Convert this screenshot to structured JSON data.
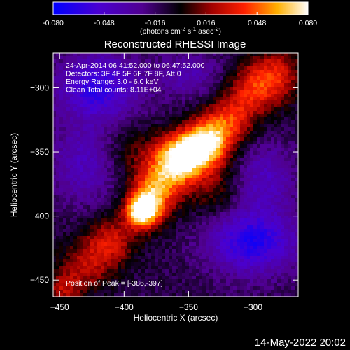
{
  "chart_data": {
    "type": "heatmap",
    "title": "Reconstructed RHESSI Image",
    "xlabel": "Heliocentric X (arcsec)",
    "ylabel": "Heliocentric Y (arcsec)",
    "xlim": [
      -455,
      -265
    ],
    "ylim": [
      -463,
      -273
    ],
    "xticks": [
      -450,
      -400,
      -350,
      -300
    ],
    "yticks": [
      -450,
      -400,
      -350,
      -300
    ],
    "colorbar": {
      "ticks": [
        "-0.080",
        "-0.048",
        "-0.016",
        "0.016",
        "0.048",
        "0.080"
      ],
      "range": [
        -0.08,
        0.08
      ],
      "unit_parts": [
        "(photons cm",
        "-2",
        " s",
        "-1",
        " asec",
        "-2",
        ")"
      ]
    },
    "annotations": [
      "24-Apr-2014 06:41:52.000 to 06:47:52.000",
      "Detectors: 3F 4F 5F 6F 7F 8F, Att 0",
      "Energy Range: 3.0 - 6.0 keV",
      "Clean     Total counts: 8.11E+04"
    ],
    "peak_label": "Position of Peak = [-386,-397]",
    "peak": [
      -386,
      -397
    ],
    "blobs": [
      {
        "x": -386,
        "y": -397,
        "amp": 0.082,
        "sx": 9,
        "sy": 9
      },
      {
        "x": -378,
        "y": -385,
        "amp": 0.06,
        "sx": 12,
        "sy": 14
      },
      {
        "x": -352,
        "y": -352,
        "amp": 0.074,
        "sx": 15,
        "sy": 12
      },
      {
        "x": -335,
        "y": -342,
        "amp": 0.068,
        "sx": 13,
        "sy": 12
      },
      {
        "x": -362,
        "y": -365,
        "amp": 0.05,
        "sx": 14,
        "sy": 14
      },
      {
        "x": -318,
        "y": -325,
        "amp": 0.045,
        "sx": 14,
        "sy": 13
      },
      {
        "x": -300,
        "y": -300,
        "amp": 0.045,
        "sx": 13,
        "sy": 14
      },
      {
        "x": -280,
        "y": -290,
        "amp": 0.04,
        "sx": 12,
        "sy": 15
      },
      {
        "x": -410,
        "y": -420,
        "amp": 0.04,
        "sx": 14,
        "sy": 14
      },
      {
        "x": -430,
        "y": -440,
        "amp": 0.032,
        "sx": 14,
        "sy": 14
      },
      {
        "x": -448,
        "y": -458,
        "amp": 0.03,
        "sx": 10,
        "sy": 10
      },
      {
        "x": -395,
        "y": -350,
        "amp": 0.018,
        "sx": 15,
        "sy": 15
      },
      {
        "x": -330,
        "y": -380,
        "amp": 0.022,
        "sx": 14,
        "sy": 16
      },
      {
        "x": -420,
        "y": -300,
        "amp": -0.05,
        "sx": 22,
        "sy": 18
      },
      {
        "x": -300,
        "y": -420,
        "amp": -0.055,
        "sx": 24,
        "sy": 18
      },
      {
        "x": -430,
        "y": -360,
        "amp": -0.03,
        "sx": 18,
        "sy": 22
      },
      {
        "x": -350,
        "y": -290,
        "amp": -0.025,
        "sx": 18,
        "sy": 12
      },
      {
        "x": -290,
        "y": -370,
        "amp": -0.03,
        "sx": 16,
        "sy": 18
      }
    ]
  },
  "footer": {
    "date": "14-May-2022 20:02"
  }
}
